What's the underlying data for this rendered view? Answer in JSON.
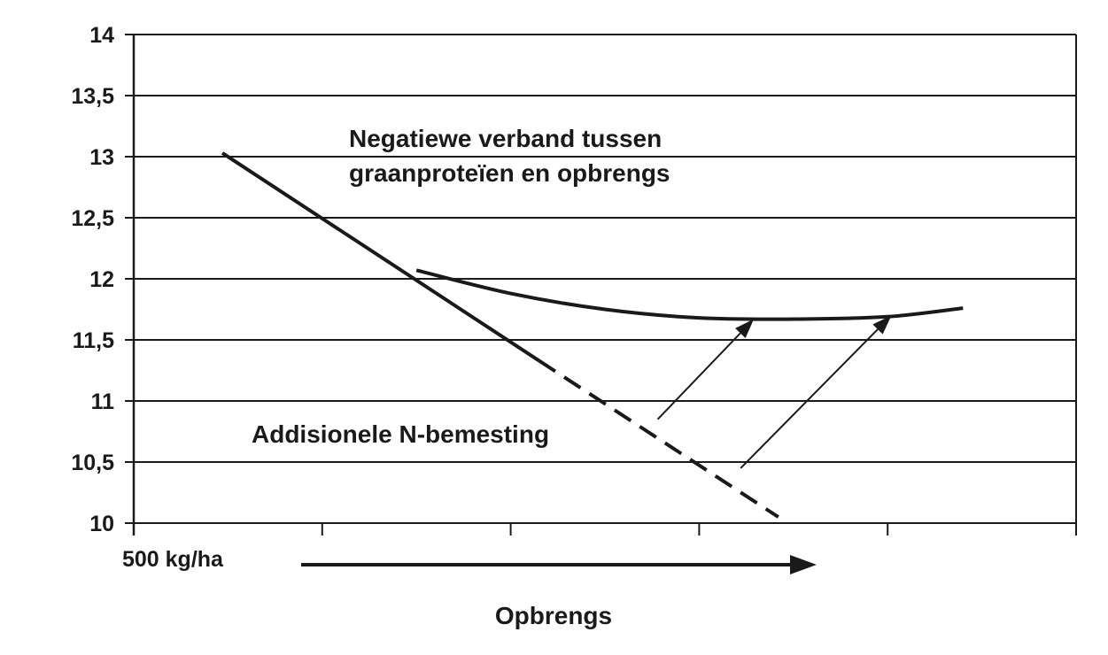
{
  "chart_data": {
    "type": "line",
    "title": "",
    "xlabel": "Opbrengs",
    "ylabel": "",
    "x_start_label": "500 kg/ha",
    "ylim": [
      10,
      14
    ],
    "y_ticks": [
      "10",
      "10,5",
      "11",
      "11,5",
      "12",
      "12,5",
      "13",
      "13,5",
      "14"
    ],
    "x_ticks_count": 5,
    "grid": "horizontal",
    "annotations": {
      "negative_relation": [
        "Negatiewe verband tussen",
        "graanproteïen en opbrengs"
      ],
      "additional_n": "Addisionele N-bemesting"
    },
    "series": [
      {
        "style": "solid",
        "x": [
          0.47,
          2.15
        ],
        "y": [
          13.03,
          11.33
        ]
      },
      {
        "style": "dashed",
        "x": [
          2.15,
          3.42
        ],
        "y": [
          11.33,
          10.05
        ]
      },
      {
        "style": "solid-curve",
        "x": [
          1.5,
          2.0,
          2.5,
          3.0,
          3.5,
          4.0,
          4.4
        ],
        "y": [
          12.07,
          11.88,
          11.75,
          11.68,
          11.67,
          11.69,
          11.76
        ]
      }
    ],
    "arrows": [
      {
        "from": [
          2.78,
          10.85
        ],
        "to": [
          3.29,
          11.67
        ]
      },
      {
        "from": [
          3.22,
          10.45
        ],
        "to": [
          4.02,
          11.7
        ]
      }
    ],
    "colors": {
      "line": "#1a1a1a",
      "grid": "#1a1a1a",
      "background": "#ffffff"
    }
  }
}
